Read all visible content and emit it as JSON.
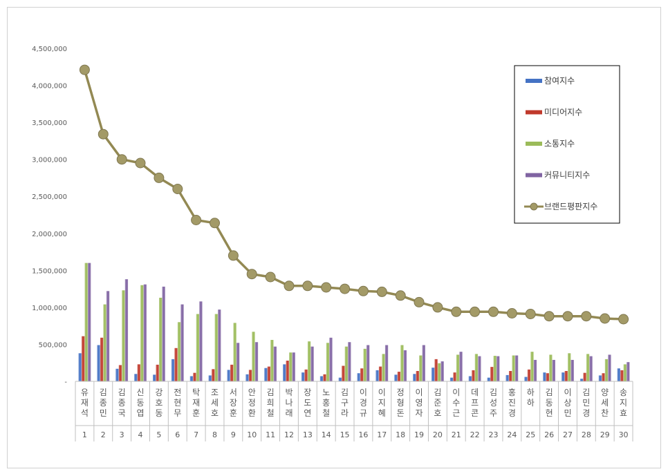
{
  "chart_data": {
    "type": "bar",
    "ylim": [
      0,
      4500000
    ],
    "yticks": [
      0,
      500000,
      1000000,
      1500000,
      2000000,
      2500000,
      3000000,
      3500000,
      4000000,
      4500000
    ],
    "ytick_labels": [
      "-",
      "500,000",
      "1,000,000",
      "1,500,000",
      "2,000,000",
      "2,500,000",
      "3,000,000",
      "3,500,000",
      "4,000,000",
      "4,500,000"
    ],
    "grid": false,
    "legend_position": "top-right",
    "categories": [
      "유재석",
      "김종민",
      "김종국",
      "신동엽",
      "강호동",
      "전현무",
      "탁재훈",
      "조세호",
      "서장훈",
      "안정환",
      "김희철",
      "박나래",
      "장도연",
      "노홍철",
      "김구라",
      "이경규",
      "이지혜",
      "정형돈",
      "이영자",
      "김준호",
      "이수근",
      "데프콘",
      "김성주",
      "홍진경",
      "하하",
      "김동현",
      "이상민",
      "김민경",
      "양세찬",
      "송지효"
    ],
    "ranks": [
      "1",
      "2",
      "3",
      "4",
      "5",
      "6",
      "7",
      "8",
      "9",
      "10",
      "11",
      "12",
      "13",
      "14",
      "15",
      "16",
      "17",
      "18",
      "19",
      "20",
      "21",
      "22",
      "23",
      "24",
      "25",
      "26",
      "27",
      "28",
      "29",
      "30"
    ],
    "series": [
      {
        "name": "참여지수",
        "type": "bar",
        "color": "#4472c4",
        "values": [
          380000,
          490000,
          170000,
          100000,
          90000,
          300000,
          70000,
          80000,
          155000,
          95000,
          180000,
          230000,
          120000,
          70000,
          50000,
          110000,
          150000,
          90000,
          100000,
          185000,
          50000,
          70000,
          50000,
          85000,
          60000,
          120000,
          120000,
          35000,
          80000,
          175000
        ]
      },
      {
        "name": "미디어지수",
        "type": "bar",
        "color": "#c0392b",
        "values": [
          610000,
          590000,
          220000,
          230000,
          225000,
          450000,
          115000,
          165000,
          225000,
          155000,
          200000,
          280000,
          160000,
          95000,
          210000,
          175000,
          200000,
          130000,
          140000,
          300000,
          120000,
          150000,
          195000,
          140000,
          160000,
          110000,
          140000,
          115000,
          110000,
          150000
        ]
      },
      {
        "name": "소통지수",
        "type": "bar",
        "color": "#9bbb59",
        "values": [
          1600000,
          1040000,
          1230000,
          1300000,
          1130000,
          800000,
          910000,
          910000,
          790000,
          670000,
          560000,
          390000,
          540000,
          520000,
          470000,
          440000,
          370000,
          490000,
          350000,
          245000,
          360000,
          370000,
          345000,
          350000,
          400000,
          360000,
          380000,
          370000,
          300000,
          230000
        ]
      },
      {
        "name": "커뮤니티지수",
        "type": "bar",
        "color": "#8064a2",
        "values": [
          1600000,
          1220000,
          1380000,
          1310000,
          1280000,
          1040000,
          1080000,
          970000,
          520000,
          530000,
          470000,
          390000,
          470000,
          590000,
          530000,
          490000,
          490000,
          420000,
          490000,
          270000,
          400000,
          340000,
          340000,
          350000,
          290000,
          290000,
          290000,
          340000,
          360000,
          260000
        ]
      },
      {
        "name": "브랜드평판지수",
        "type": "line",
        "color": "#938953",
        "values": [
          4210000,
          3340000,
          3000000,
          2950000,
          2750000,
          2600000,
          2180000,
          2140000,
          1700000,
          1450000,
          1410000,
          1290000,
          1290000,
          1270000,
          1250000,
          1220000,
          1210000,
          1160000,
          1070000,
          1000000,
          940000,
          940000,
          940000,
          920000,
          910000,
          880000,
          880000,
          880000,
          850000,
          840000
        ]
      }
    ]
  }
}
